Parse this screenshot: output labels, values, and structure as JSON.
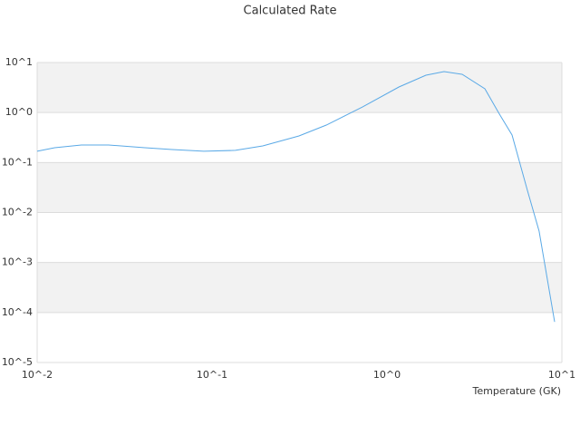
{
  "chart_data": {
    "type": "line",
    "title": "Calculated Rate",
    "x_label": "Temperature (GK)",
    "x": [
      0.01,
      0.0126,
      0.0179,
      0.0256,
      0.0413,
      0.0591,
      0.0897,
      0.136,
      0.195,
      0.314,
      0.45,
      0.724,
      1.17,
      1.67,
      2.12,
      2.69,
      3.63,
      4.34,
      5.19,
      6.35,
      7.41,
      9.09
    ],
    "values": [
      0.168,
      0.198,
      0.224,
      0.224,
      0.198,
      0.182,
      0.168,
      0.175,
      0.215,
      0.34,
      0.561,
      1.29,
      3.24,
      5.57,
      6.59,
      5.81,
      2.98,
      1.0,
      0.355,
      0.0278,
      0.00425,
      6.5e-05
    ],
    "color": "#5aa9e6",
    "xlog": true,
    "ylog": true,
    "grid": true,
    "xlim": [
      0.01,
      10
    ],
    "ylim": [
      1e-05,
      10
    ],
    "xticks": [
      {
        "value": 0.01,
        "label": "10^-2"
      },
      {
        "value": 0.1,
        "label": "10^-1"
      },
      {
        "value": 1,
        "label": "10^0"
      },
      {
        "value": 10,
        "label": "10^1"
      }
    ],
    "yticks": [
      {
        "value": 1e-05,
        "label": "10^-5"
      },
      {
        "value": 0.0001,
        "label": "10^-4"
      },
      {
        "value": 0.001,
        "label": "10^-3"
      },
      {
        "value": 0.01,
        "label": "10^-2"
      },
      {
        "value": 0.1,
        "label": "10^-1"
      },
      {
        "value": 1,
        "label": "10^0"
      },
      {
        "value": 10,
        "label": "10^1"
      }
    ]
  }
}
